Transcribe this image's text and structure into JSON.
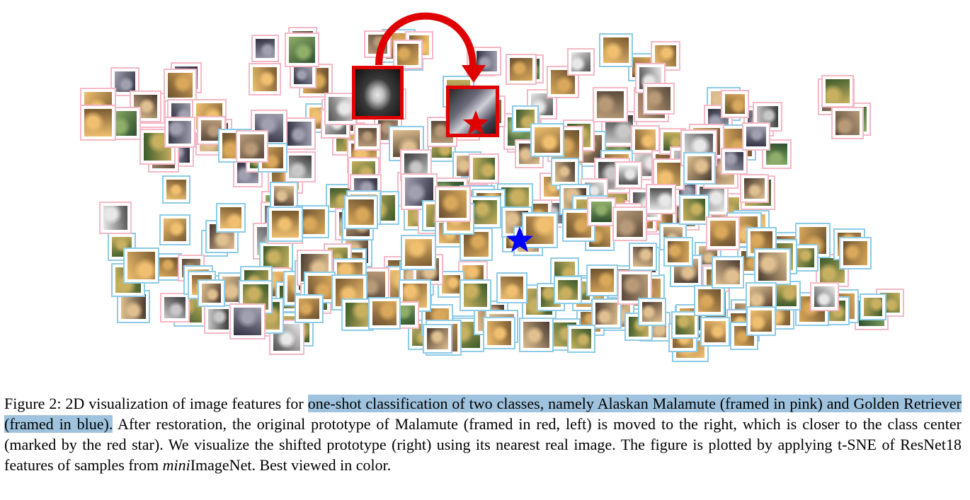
{
  "figure": {
    "classes": [
      {
        "name": "Alaskan Malamute",
        "frame_color": "#f4b8c6"
      },
      {
        "name": "Golden Retriever",
        "frame_color": "#8ecbe6"
      }
    ],
    "prototype_frame_color": "#e00000",
    "class_center_marker": {
      "shape": "star",
      "color": "#e00000"
    },
    "other_marker": {
      "shape": "star",
      "color": "#0000ff"
    },
    "arrow_color": "#e00000"
  },
  "caption": {
    "prefix": "Figure 2: 2D visualization of image features for ",
    "highlighted": "one-shot classification of two classes, namely Alaskan Malamute (framed in pink) and Golden Retriever (framed in blue).",
    "middle": " After restoration, the original prototype of Malamute (framed in red, left) is moved to the right, which is closer to the class center (marked by the red star). We visualize the shifted prototype (right) using its nearest real image. The figure is plotted by applying t-SNE of ResNet18 features of samples from ",
    "italic": "mini",
    "suffix": "ImageNet. Best viewed in color."
  }
}
